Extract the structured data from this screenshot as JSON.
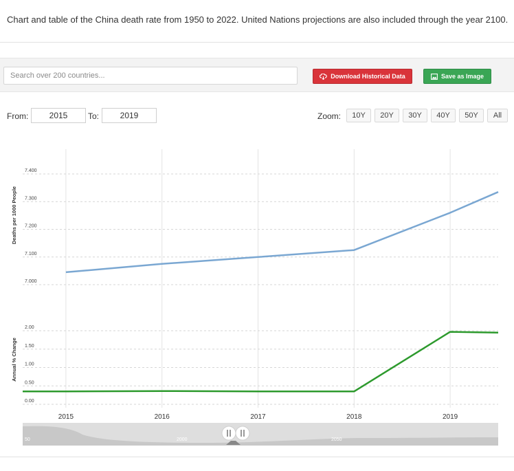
{
  "intro": "Chart and table of the China death rate from 1950 to 2022. United Nations projections are also included through the year 2100.",
  "search": {
    "placeholder": "Search over 200 countries..."
  },
  "buttons": {
    "download": "Download Historical Data",
    "save": "Save as Image"
  },
  "range": {
    "from_label": "From:",
    "from_value": "2015",
    "to_label": "To:",
    "to_value": "2019"
  },
  "zoom": {
    "label": "Zoom:",
    "options": [
      "10Y",
      "20Y",
      "30Y",
      "40Y",
      "50Y",
      "All"
    ]
  },
  "colors": {
    "death_rate": "#7aa7d2",
    "change": "#2d9a2d",
    "download_btn": "#d9343a",
    "save_btn": "#3aa655"
  },
  "chart_data": [
    {
      "type": "line",
      "ylabel": "Deaths per 1000 People",
      "x": [
        2015,
        2016,
        2017,
        2018,
        2019,
        2019.5
      ],
      "values": [
        7.045,
        7.075,
        7.1,
        7.125,
        7.26,
        7.335
      ],
      "yticks": [
        "7.000",
        "7.100",
        "7.200",
        "7.300",
        "7.400"
      ],
      "ylim": [
        7.0,
        7.4
      ],
      "xlim": [
        2014.55,
        2019.5
      ],
      "grid": true
    },
    {
      "type": "line",
      "ylabel": "Annual % Change",
      "x": [
        2014.55,
        2015,
        2016,
        2017,
        2018,
        2019,
        2019.5
      ],
      "values": [
        0.35,
        0.35,
        0.36,
        0.35,
        0.35,
        1.97,
        1.95
      ],
      "yticks": [
        "0.00",
        "0.50",
        "1.00",
        "1.50",
        "2.00"
      ],
      "ylim": [
        0,
        2.0
      ],
      "xlim": [
        2014.55,
        2019.5
      ],
      "xticks": [
        "2015",
        "2016",
        "2017",
        "2018",
        "2019"
      ],
      "grid": true
    }
  ],
  "navigator": {
    "labels": [
      "50",
      "2000",
      "2050"
    ]
  }
}
